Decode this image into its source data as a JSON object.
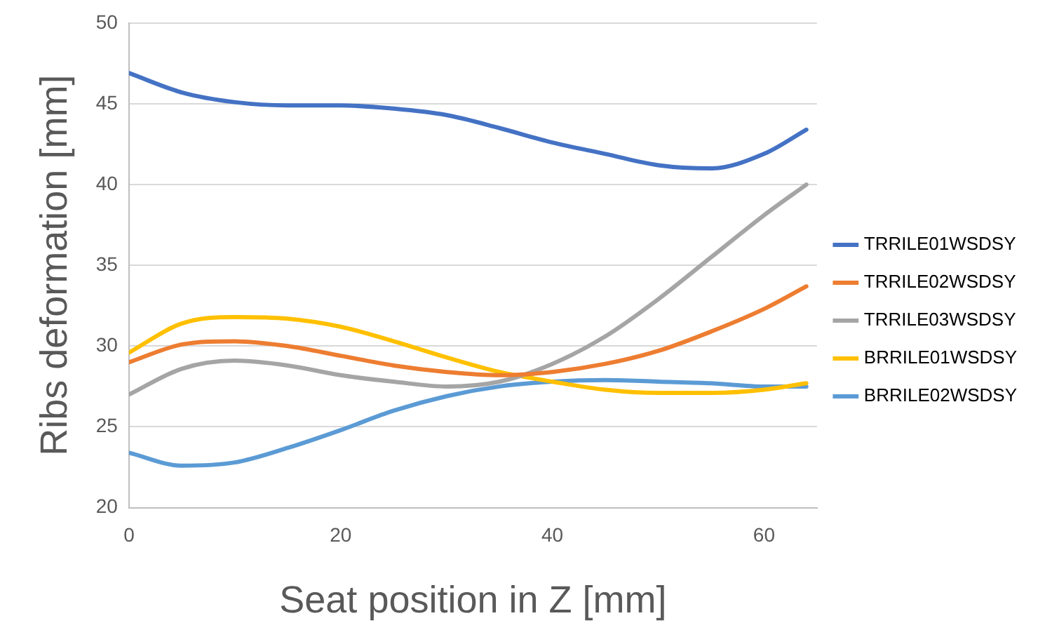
{
  "chart_data": {
    "type": "line",
    "xlabel": "Seat position in Z [mm]",
    "ylabel": "Ribs deformation [mm]",
    "x": [
      0,
      5,
      10,
      15,
      20,
      25,
      30,
      35,
      40,
      45,
      50,
      55,
      60,
      64
    ],
    "series": [
      {
        "name": "TRRILE01WSDSY",
        "color": "#4472c4",
        "values": [
          46.9,
          45.7,
          45.1,
          44.9,
          44.9,
          44.7,
          44.3,
          43.5,
          42.6,
          41.9,
          41.2,
          41.0,
          41.9,
          43.4
        ]
      },
      {
        "name": "TRRILE02WSDSY",
        "color": "#ed7d31",
        "values": [
          29.0,
          30.1,
          30.3,
          30.0,
          29.4,
          28.8,
          28.4,
          28.2,
          28.4,
          28.9,
          29.7,
          30.9,
          32.3,
          33.7
        ]
      },
      {
        "name": "TRRILE03WSDSY",
        "color": "#a5a5a5",
        "values": [
          27.0,
          28.6,
          29.1,
          28.8,
          28.2,
          27.8,
          27.5,
          27.8,
          28.9,
          30.6,
          32.9,
          35.5,
          38.1,
          40.0
        ]
      },
      {
        "name": "BRRILE01WSDSY",
        "color": "#ffc000",
        "values": [
          29.6,
          31.4,
          31.8,
          31.7,
          31.2,
          30.3,
          29.3,
          28.4,
          27.8,
          27.3,
          27.1,
          27.1,
          27.3,
          27.7
        ]
      },
      {
        "name": "BRRILE02WSDSY",
        "color": "#5b9bd5",
        "values": [
          23.4,
          22.6,
          22.8,
          23.7,
          24.8,
          26.0,
          26.9,
          27.5,
          27.8,
          27.9,
          27.8,
          27.7,
          27.5,
          27.5
        ]
      }
    ],
    "xlim": [
      0,
      65
    ],
    "xticks": [
      0,
      20,
      40,
      60
    ],
    "ylim": [
      20,
      50
    ],
    "yticks": [
      20,
      25,
      30,
      35,
      40,
      45,
      50
    ],
    "grid": "y",
    "legend": "right",
    "marker": "none",
    "line_style": "solid"
  }
}
